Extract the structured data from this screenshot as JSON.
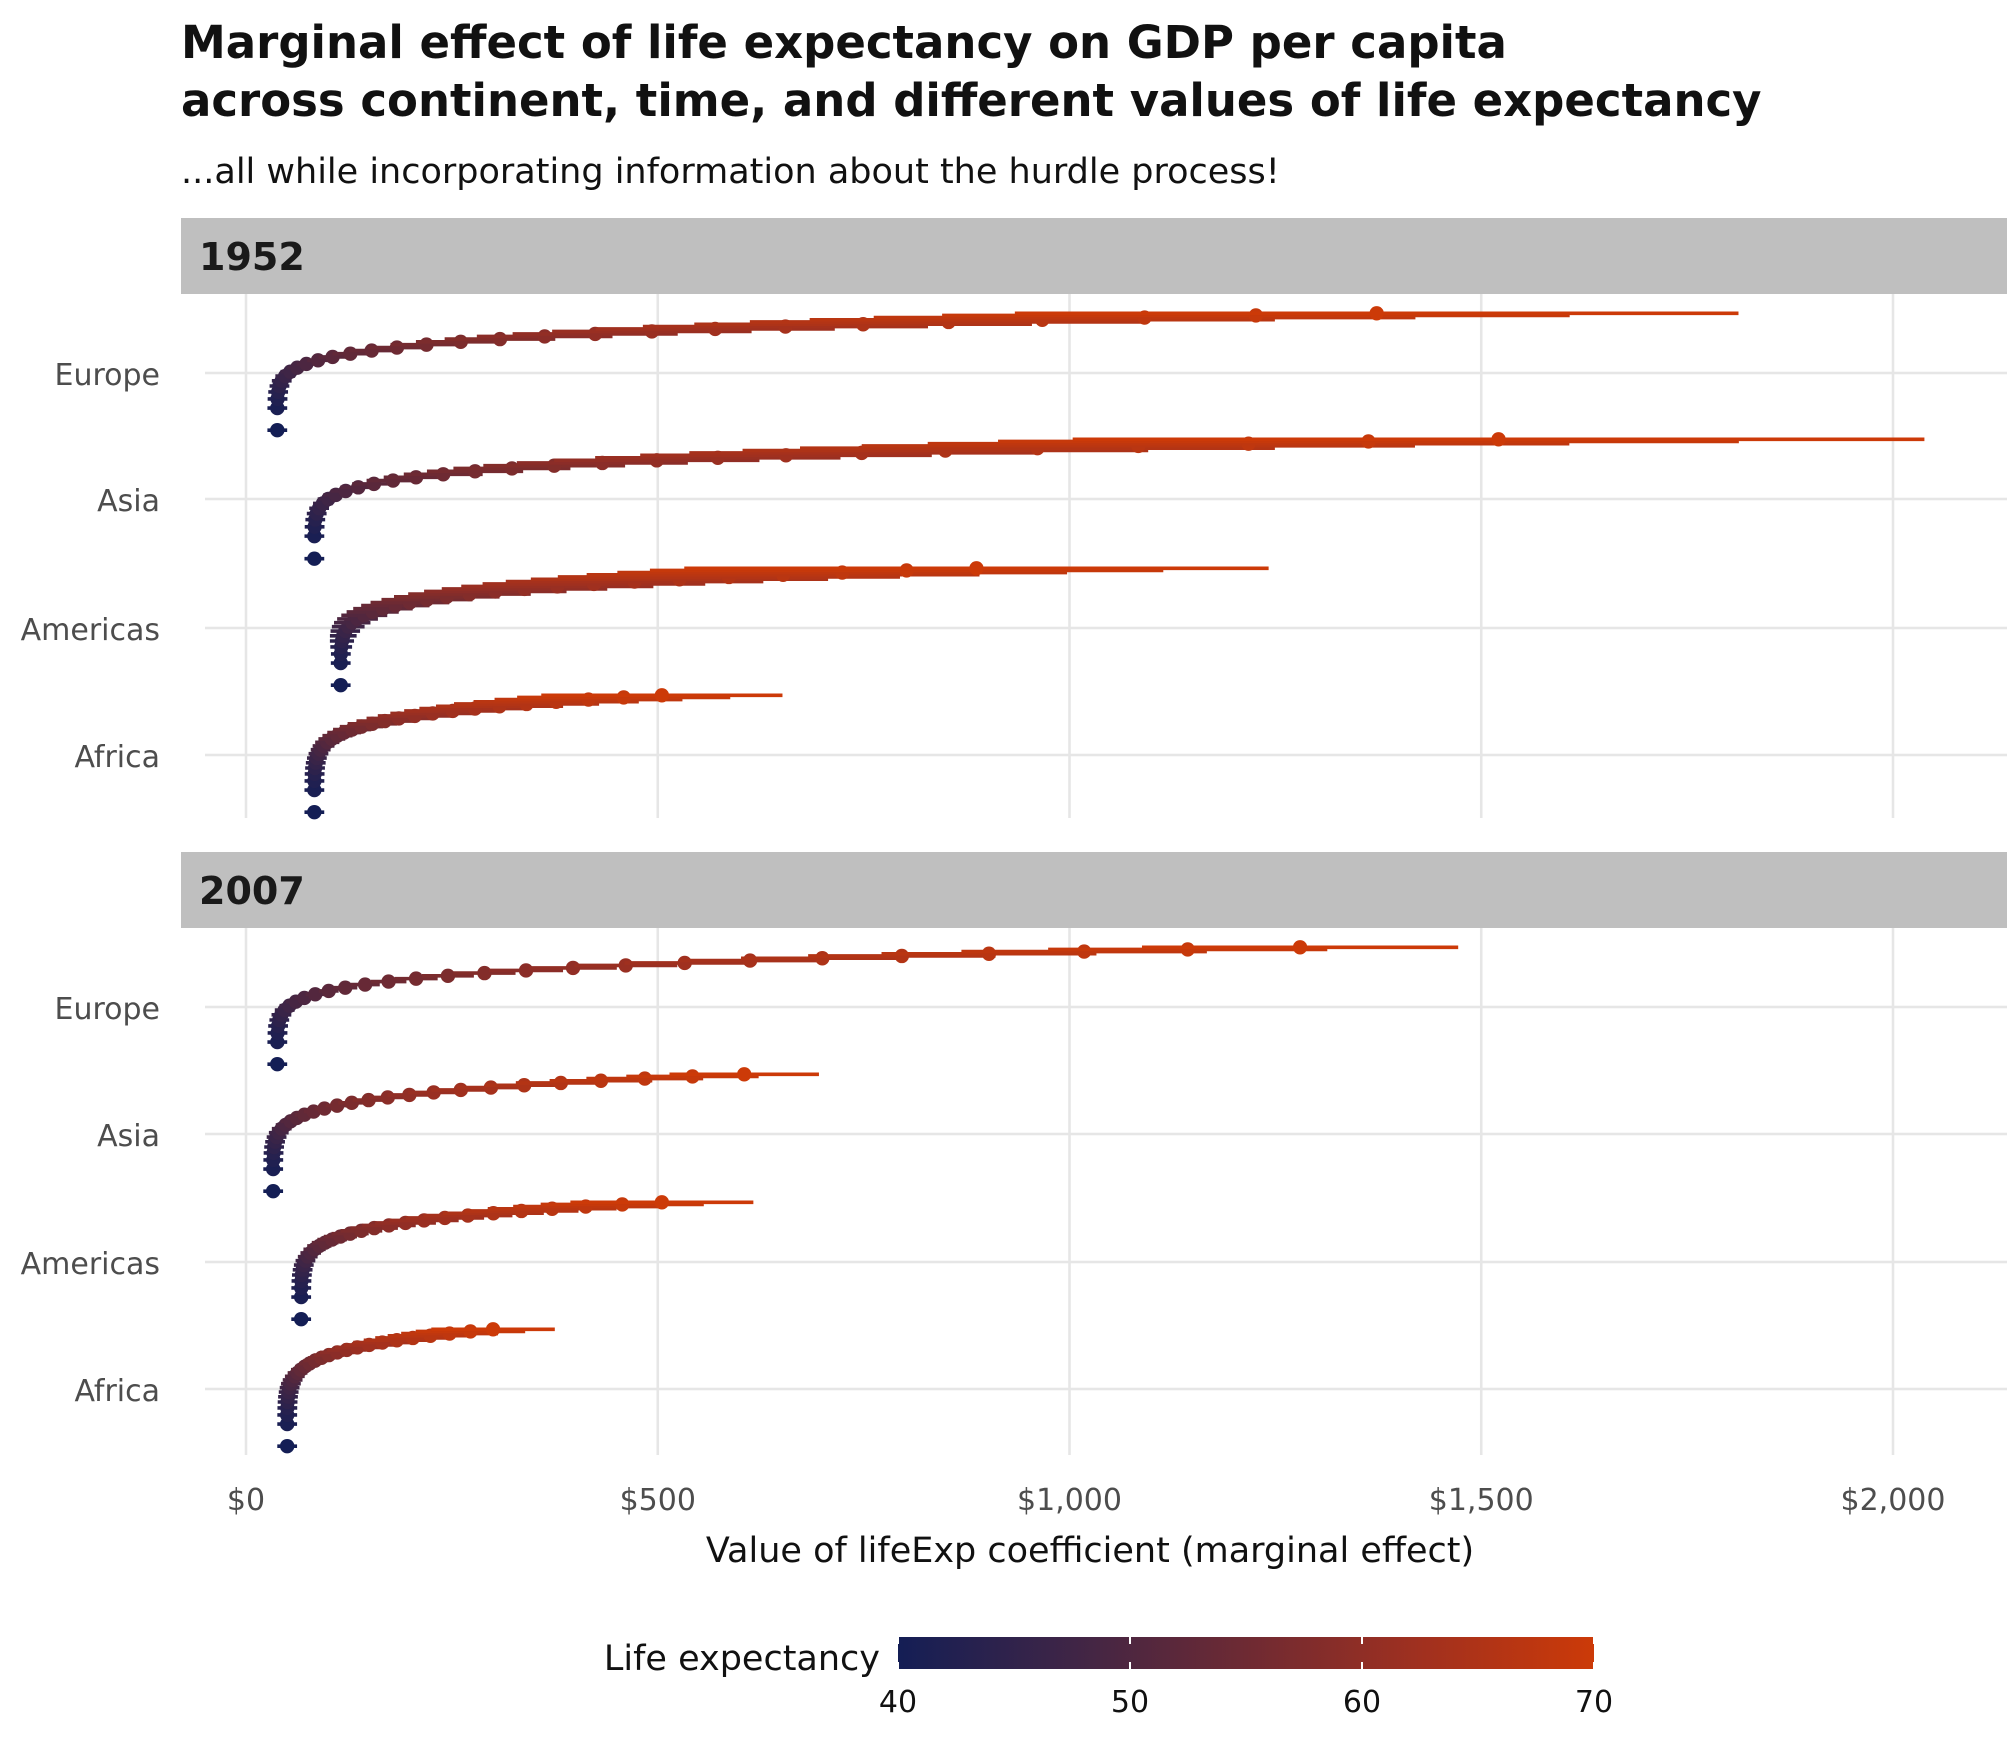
{
  "chart_data": {
    "type": "pointrange",
    "title_line1": "Marginal effect of life expectancy on GDP per capita",
    "title_line2": "across continent, time, and different values of life expectancy",
    "subtitle": "...all while incorporating information about the hurdle process!",
    "xlabel": "Value of lifeExp coefficient (marginal effect)",
    "xlim": [
      -70,
      2130
    ],
    "x_ticks": [
      0,
      500,
      1000,
      1500,
      2000
    ],
    "x_tick_labels": [
      "$0",
      "$500",
      "$1,000",
      "$1,500",
      "$2,000"
    ],
    "grid": true,
    "legend": {
      "title": "Life expectancy",
      "position": "bottom",
      "range": [
        40,
        70
      ],
      "ticks": [
        40,
        50,
        60,
        70
      ],
      "colors": [
        "#141e55",
        "#3f2546",
        "#6e2a33",
        "#a0301f",
        "#cc3a08"
      ]
    },
    "continents": [
      "Europe",
      "Asia",
      "Americas",
      "Africa"
    ],
    "panels": [
      {
        "label": "1952",
        "series": [
          {
            "name": "Europe",
            "start": [
              38,
              -0.45
            ],
            "end": [
              1373,
              0.47
            ],
            "n": 29,
            "ci": [
              0.06,
              0.32
            ]
          },
          {
            "name": "Asia",
            "start": [
              83,
              -0.47
            ],
            "end": [
              1521,
              0.47
            ],
            "n": 29,
            "ci": [
              0.06,
              0.34
            ]
          },
          {
            "name": "Americas",
            "start": [
              115,
              -0.45
            ],
            "end": [
              887,
              0.47
            ],
            "n": 29,
            "ci": [
              0.08,
              0.4
            ]
          },
          {
            "name": "Africa",
            "start": [
              83,
              -0.45
            ],
            "end": [
              505,
              0.47
            ],
            "n": 29,
            "ci": [
              0.07,
              0.29
            ]
          }
        ]
      },
      {
        "label": "2007",
        "series": [
          {
            "name": "Europe",
            "start": [
              38,
              -0.45
            ],
            "end": [
              1280,
              0.47
            ],
            "n": 29,
            "ci": [
              0.1,
              0.15
            ]
          },
          {
            "name": "Asia",
            "start": [
              33,
              -0.45
            ],
            "end": [
              605,
              0.47
            ],
            "n": 29,
            "ci": [
              0.1,
              0.15
            ]
          },
          {
            "name": "Americas",
            "start": [
              67,
              -0.45
            ],
            "end": [
              505,
              0.47
            ],
            "n": 29,
            "ci": [
              0.13,
              0.22
            ]
          },
          {
            "name": "Africa",
            "start": [
              50,
              -0.45
            ],
            "end": [
              300,
              0.47
            ],
            "n": 29,
            "ci": [
              0.08,
              0.25
            ]
          }
        ]
      }
    ]
  }
}
